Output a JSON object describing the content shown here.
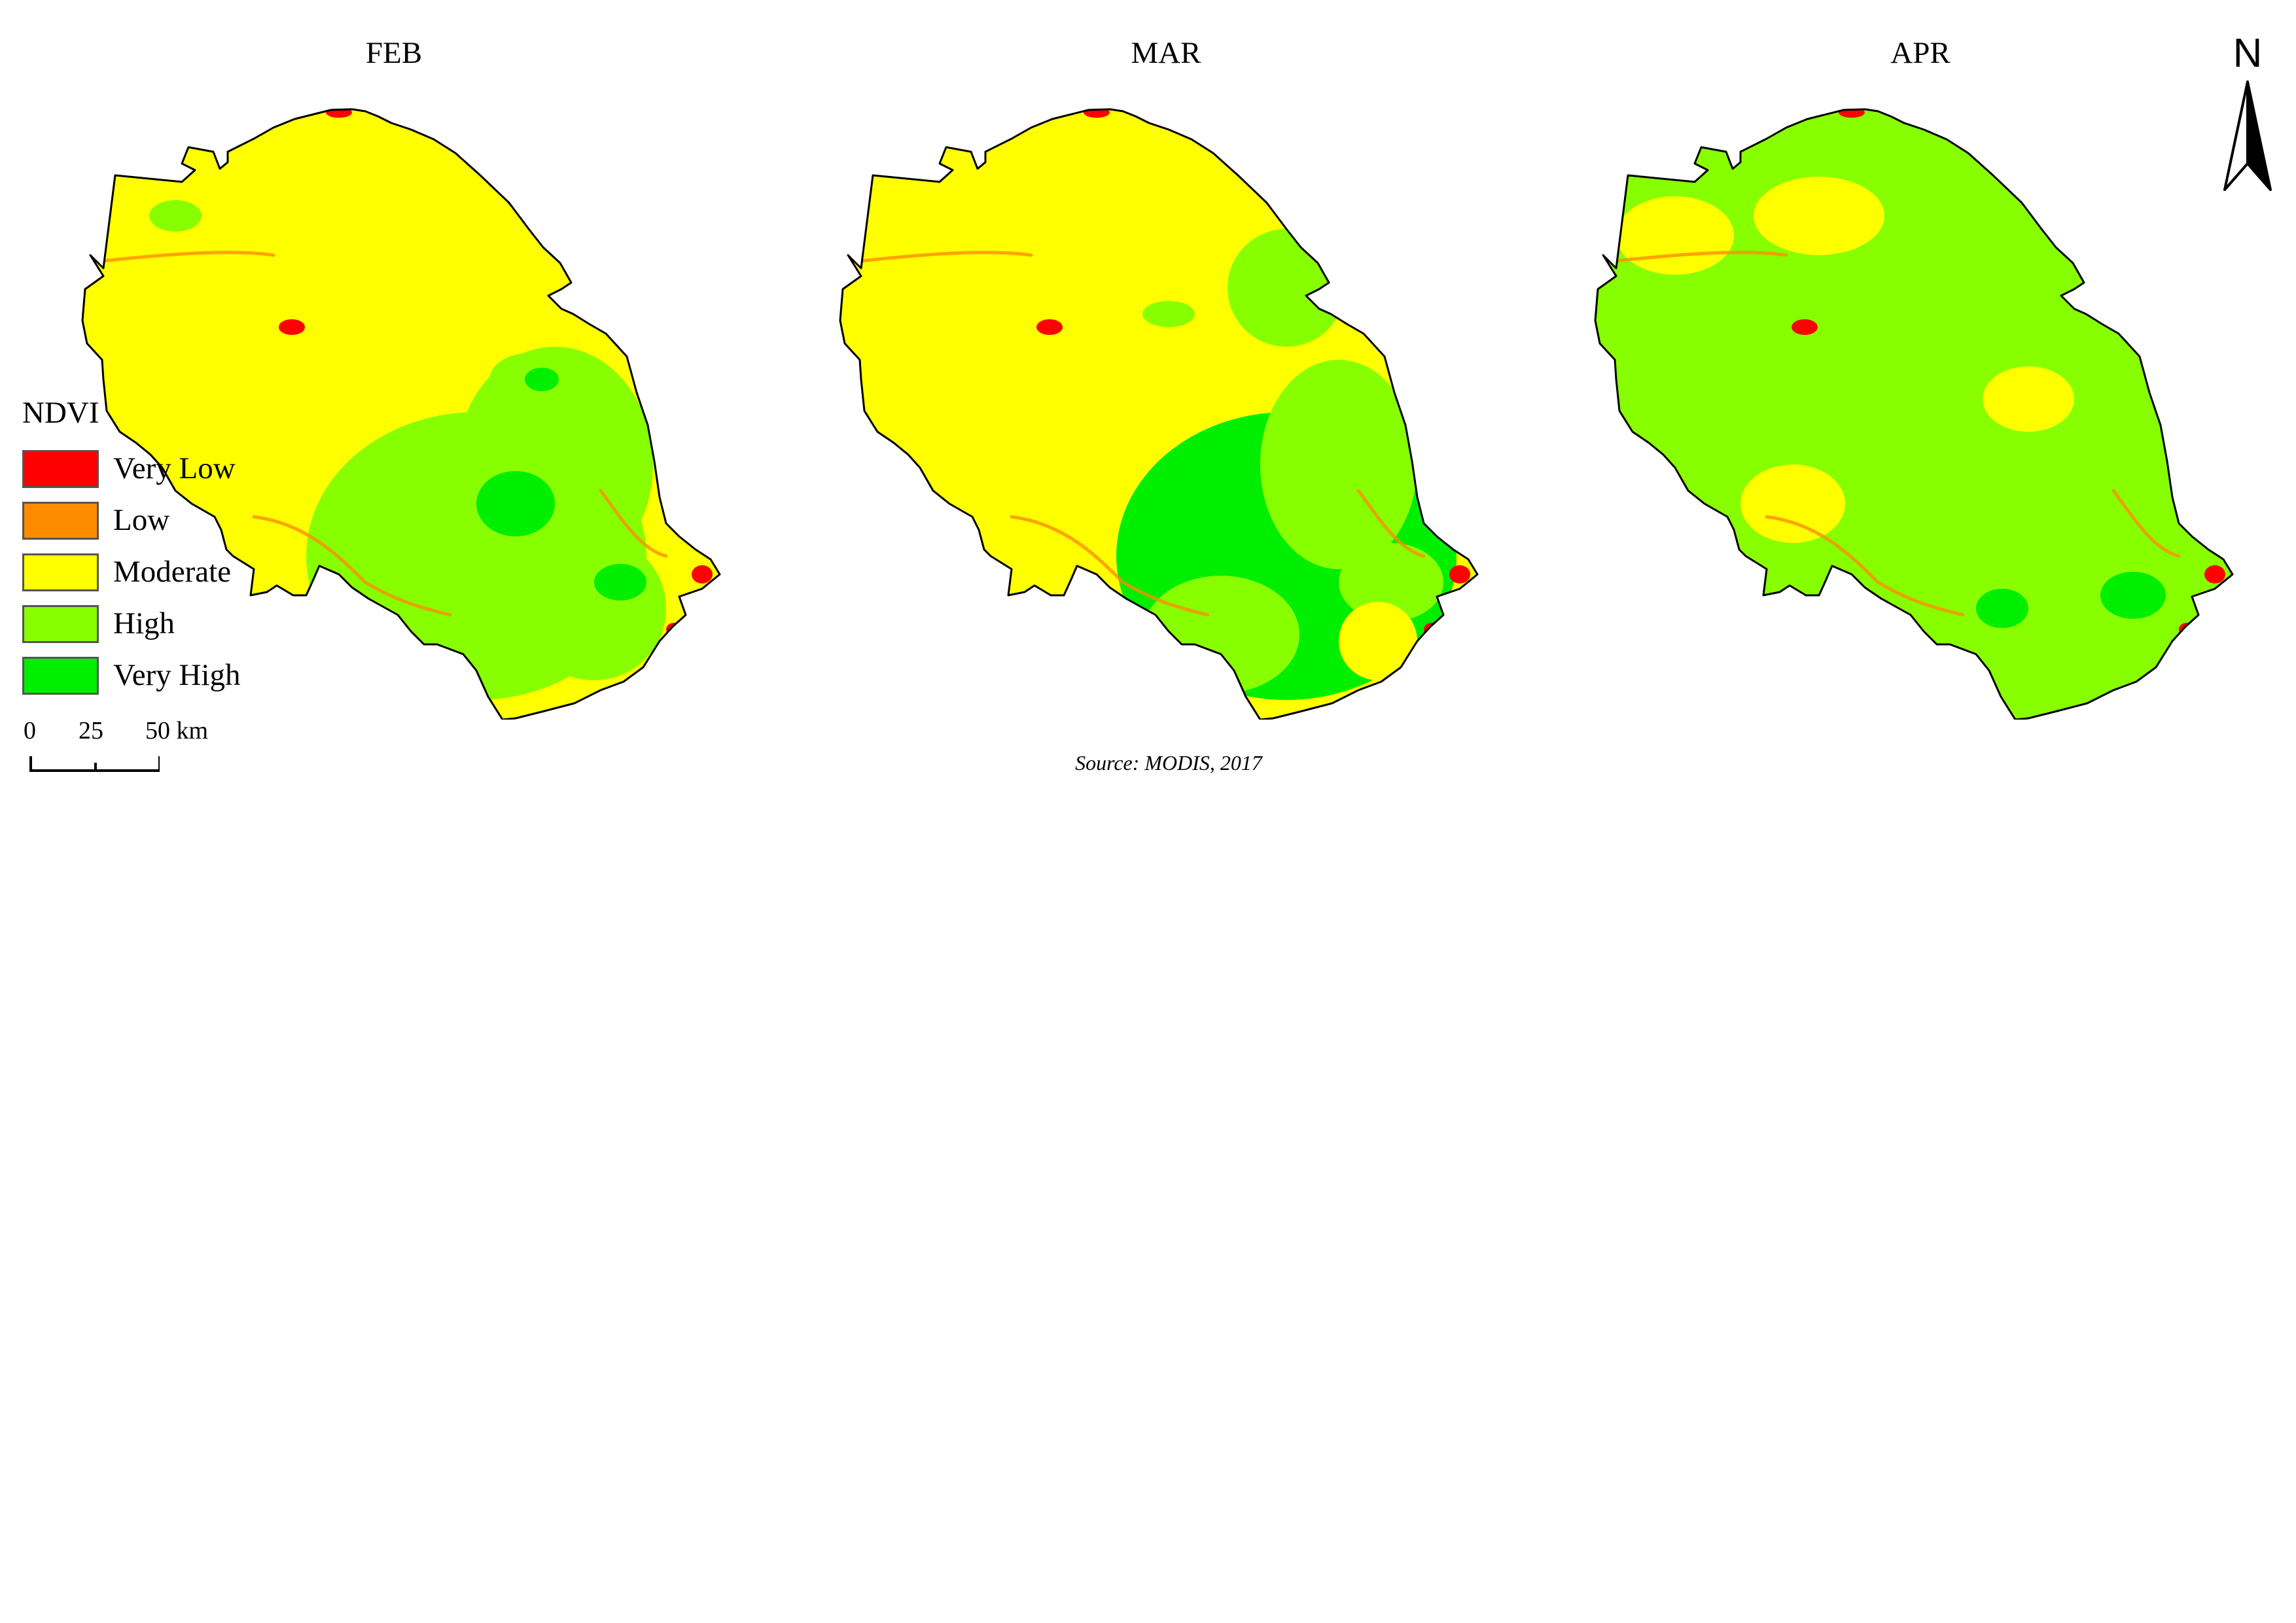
{
  "maps": [
    {
      "title": "FEB",
      "dominant_class": "Moderate"
    },
    {
      "title": "MAR",
      "dominant_class": "Moderate"
    },
    {
      "title": "APR",
      "dominant_class": "High"
    }
  ],
  "legend": {
    "title": "NDVI",
    "items": [
      {
        "label": "Very Low",
        "color": "#FF0000"
      },
      {
        "label": "Low",
        "color": "#FF8C00"
      },
      {
        "label": "Moderate",
        "color": "#FFFF00"
      },
      {
        "label": "High",
        "color": "#88FF00"
      },
      {
        "label": "Very High",
        "color": "#00EE00"
      }
    ]
  },
  "scale_bar": {
    "tick_labels": [
      "0",
      "25",
      "50 km"
    ]
  },
  "north_arrow": {
    "label": "N"
  },
  "source": "Source: MODIS, 2017"
}
